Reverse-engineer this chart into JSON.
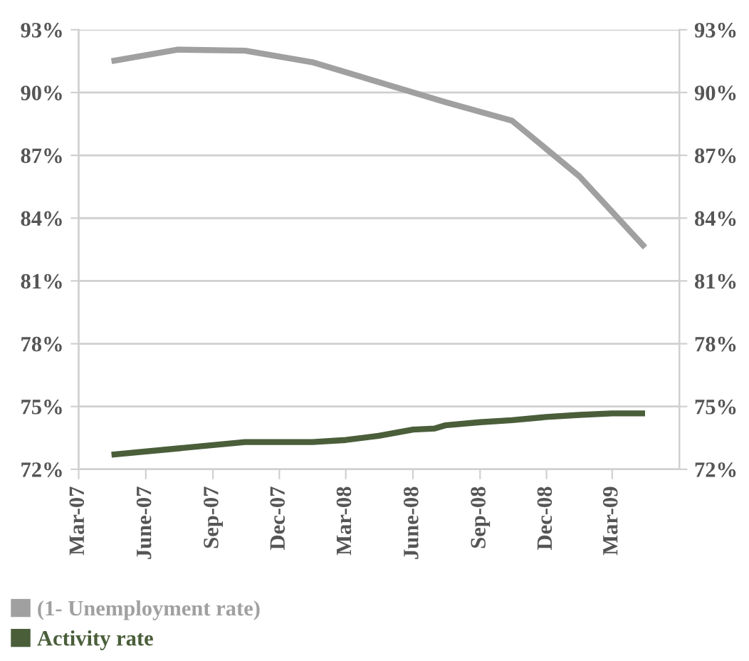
{
  "chart_data": {
    "type": "line",
    "x": [
      "2007-04-15",
      "2007-07-15",
      "2007-10-15",
      "2008-01-15",
      "2008-04-15",
      "2008-07-15",
      "2008-10-15",
      "2009-01-15",
      "2009-04-15"
    ],
    "series": [
      {
        "name": "(1- Unemployment rate)",
        "color": "#a0a0a0",
        "values": [
          91.5,
          92.05,
          92.0,
          91.45,
          90.5,
          89.55,
          88.65,
          86.0,
          82.6
        ]
      },
      {
        "name": "Activity rate",
        "color": "#4a5e3a",
        "x": [
          "2007-04-15",
          "2007-10-15",
          "2008-01-15",
          "2008-03-01",
          "2008-04-15",
          "2008-06-01",
          "2008-07-01",
          "2008-07-15",
          "2008-09-01",
          "2008-10-15",
          "2008-12-01",
          "2009-01-15",
          "2009-03-01",
          "2009-04-15"
        ],
        "values": [
          72.7,
          73.3,
          73.3,
          73.4,
          73.6,
          73.9,
          73.95,
          74.1,
          74.25,
          74.35,
          74.5,
          74.6,
          74.67,
          74.67
        ]
      }
    ],
    "xlim": [
      "2007-03-01",
      "2009-06-01"
    ],
    "xticks": [
      {
        "value": "2007-03-01",
        "label": "Mar-07"
      },
      {
        "value": "2007-06-01",
        "label": "June-07"
      },
      {
        "value": "2007-09-01",
        "label": "Sep-07"
      },
      {
        "value": "2007-12-01",
        "label": "Dec-07"
      },
      {
        "value": "2008-03-01",
        "label": "Mar-08"
      },
      {
        "value": "2008-06-01",
        "label": "June-08"
      },
      {
        "value": "2008-09-01",
        "label": "Sep-08"
      },
      {
        "value": "2008-12-01",
        "label": "Dec-08"
      },
      {
        "value": "2009-03-01",
        "label": "Mar-09"
      }
    ],
    "ylim": [
      72,
      93
    ],
    "yticks": [
      {
        "value": 72,
        "label": "72%"
      },
      {
        "value": 75,
        "label": "75%"
      },
      {
        "value": 78,
        "label": "78%"
      },
      {
        "value": 81,
        "label": "81%"
      },
      {
        "value": 84,
        "label": "84%"
      },
      {
        "value": 87,
        "label": "87%"
      },
      {
        "value": 90,
        "label": "90%"
      },
      {
        "value": 93,
        "label": "93%"
      }
    ],
    "y2lim": [
      72,
      93
    ],
    "y2ticks": [
      {
        "value": 72,
        "label": "72%"
      },
      {
        "value": 75,
        "label": "75%"
      },
      {
        "value": 78,
        "label": "78%"
      },
      {
        "value": 81,
        "label": "81%"
      },
      {
        "value": 84,
        "label": "84%"
      },
      {
        "value": 87,
        "label": "87%"
      },
      {
        "value": 90,
        "label": "90%"
      },
      {
        "value": 93,
        "label": "93%"
      }
    ],
    "grid": "y",
    "legend": "bottom left",
    "marker": "none",
    "line_style": "solid"
  }
}
